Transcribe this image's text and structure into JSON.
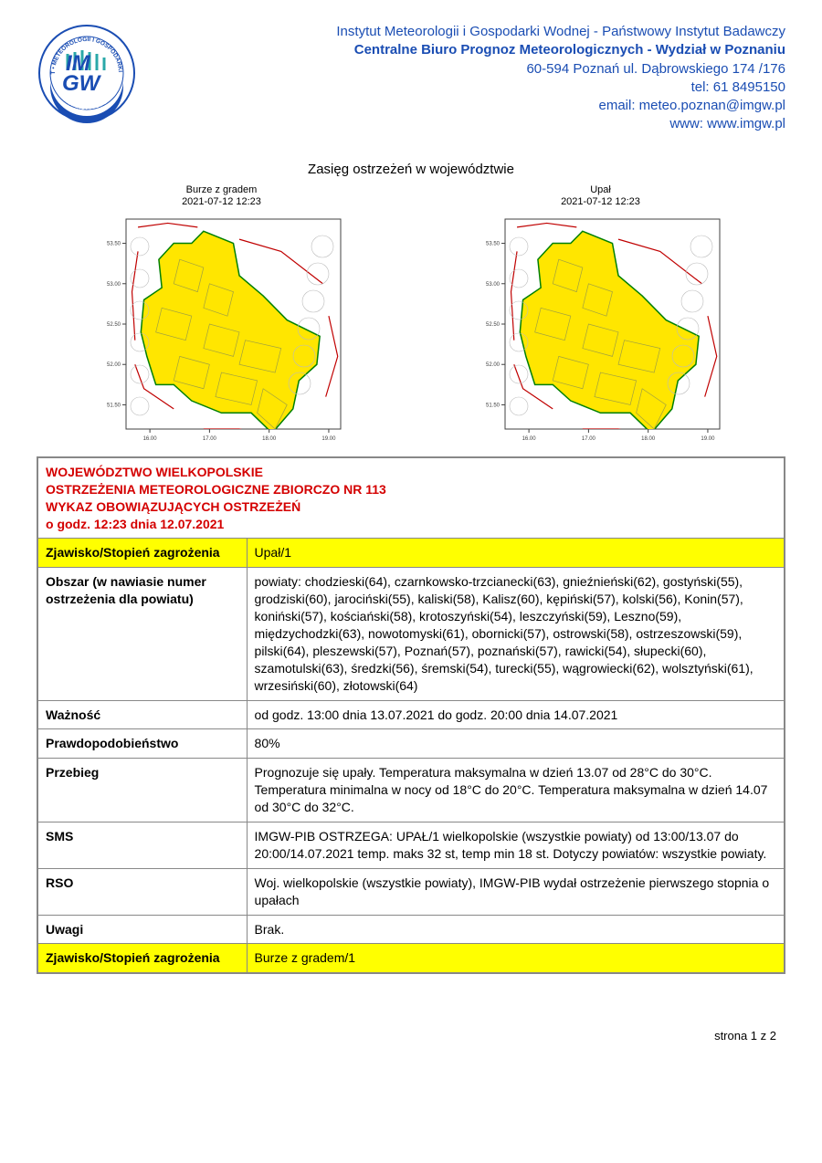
{
  "header": {
    "line1": "Instytut Meteorologii i Gospodarki Wodnej - Państwowy Instytut Badawczy",
    "line2": "Centralne Biuro Prognoz Meteorologicznych - Wydział w Poznaniu",
    "address": "60-594 Poznań ul. Dąbrowskiego 174 /176",
    "tel": "tel: 61 8495150",
    "email": "email: meteo.poznan@imgw.pl",
    "www": "www: www.imgw.pl",
    "logo_text_top": "IM",
    "logo_text_bot": "GW"
  },
  "section_title": "Zasięg ostrzeżeń w województwie",
  "maps": {
    "left_title": "Burze z gradem",
    "left_ts": "2021-07-12 12:23",
    "right_title": "Upał",
    "right_ts": "2021-07-12 12:23",
    "fill_color": "#ffe600",
    "outline_color": "#008000",
    "neighbor_border": "#c00000",
    "axis_color": "#404040",
    "x_ticks": [
      "16.00",
      "17.00",
      "18.00",
      "19.00"
    ],
    "y_ticks": [
      "51.50",
      "52.00",
      "52.50",
      "53.00",
      "53.50"
    ]
  },
  "title_block": {
    "l1": "WOJEWÓDZTWO WIELKOPOLSKIE",
    "l2": "OSTRZEŻENIA METEOROLOGICZNE ZBIORCZO NR 113",
    "l3": "WYKAZ OBOWIĄZUJĄCYCH OSTRZEŻEŃ",
    "l4": "o godz. 12:23 dnia 12.07.2021"
  },
  "rows": {
    "zjawisko1_label": "Zjawisko/Stopień zagrożenia",
    "zjawisko1_value": "Upał/1",
    "obszar_label": "Obszar (w nawiasie numer ostrzeżenia dla powiatu)",
    "obszar_value": "powiaty: chodzieski(64), czarnkowsko-trzcianecki(63), gnieźnieński(62), gostyński(55), grodziski(60), jarociński(55), kaliski(58), Kalisz(60), kępiński(57), kolski(56), Konin(57), koniński(57), kościański(58), krotoszyński(54), leszczyński(59), Leszno(59), międzychodzki(63), nowotomyski(61), obornicki(57), ostrowski(58), ostrzeszowski(59), pilski(64), pleszewski(57), Poznań(57), poznański(57), rawicki(54), słupecki(60), szamotulski(63), średzki(56), śremski(54), turecki(55), wągrowiecki(62), wolsztyński(61), wrzesiński(60), złotowski(64)",
    "waznosc_label": "Ważność",
    "waznosc_value": "od godz. 13:00 dnia 13.07.2021 do godz. 20:00 dnia 14.07.2021",
    "prawd_label": "Prawdopodobieństwo",
    "prawd_value": "80%",
    "przebieg_label": "Przebieg",
    "przebieg_value": "Prognozuje się upały. Temperatura maksymalna w dzień 13.07 od 28°C do 30°C. Temperatura minimalna w nocy od 18°C do 20°C. Temperatura maksymalna w dzień 14.07 od 30°C do 32°C.",
    "sms_label": "SMS",
    "sms_value": "IMGW-PIB OSTRZEGA: UPAŁ/1 wielkopolskie (wszystkie powiaty) od 13:00/13.07 do 20:00/14.07.2021 temp. maks 32 st, temp min 18 st. Dotyczy powiatów: wszystkie powiaty.",
    "rso_label": "RSO",
    "rso_value": "Woj. wielkopolskie (wszystkie powiaty), IMGW-PIB wydał ostrzeżenie pierwszego stopnia o upałach",
    "uwagi_label": "Uwagi",
    "uwagi_value": "Brak.",
    "zjawisko2_label": "Zjawisko/Stopień zagrożenia",
    "zjawisko2_value": "Burze z gradem/1"
  },
  "footer": "strona 1 z 2",
  "colors": {
    "header_text": "#1a4db3",
    "title_red": "#d40000",
    "yellow_bg": "#ffff00",
    "border": "#888888"
  }
}
